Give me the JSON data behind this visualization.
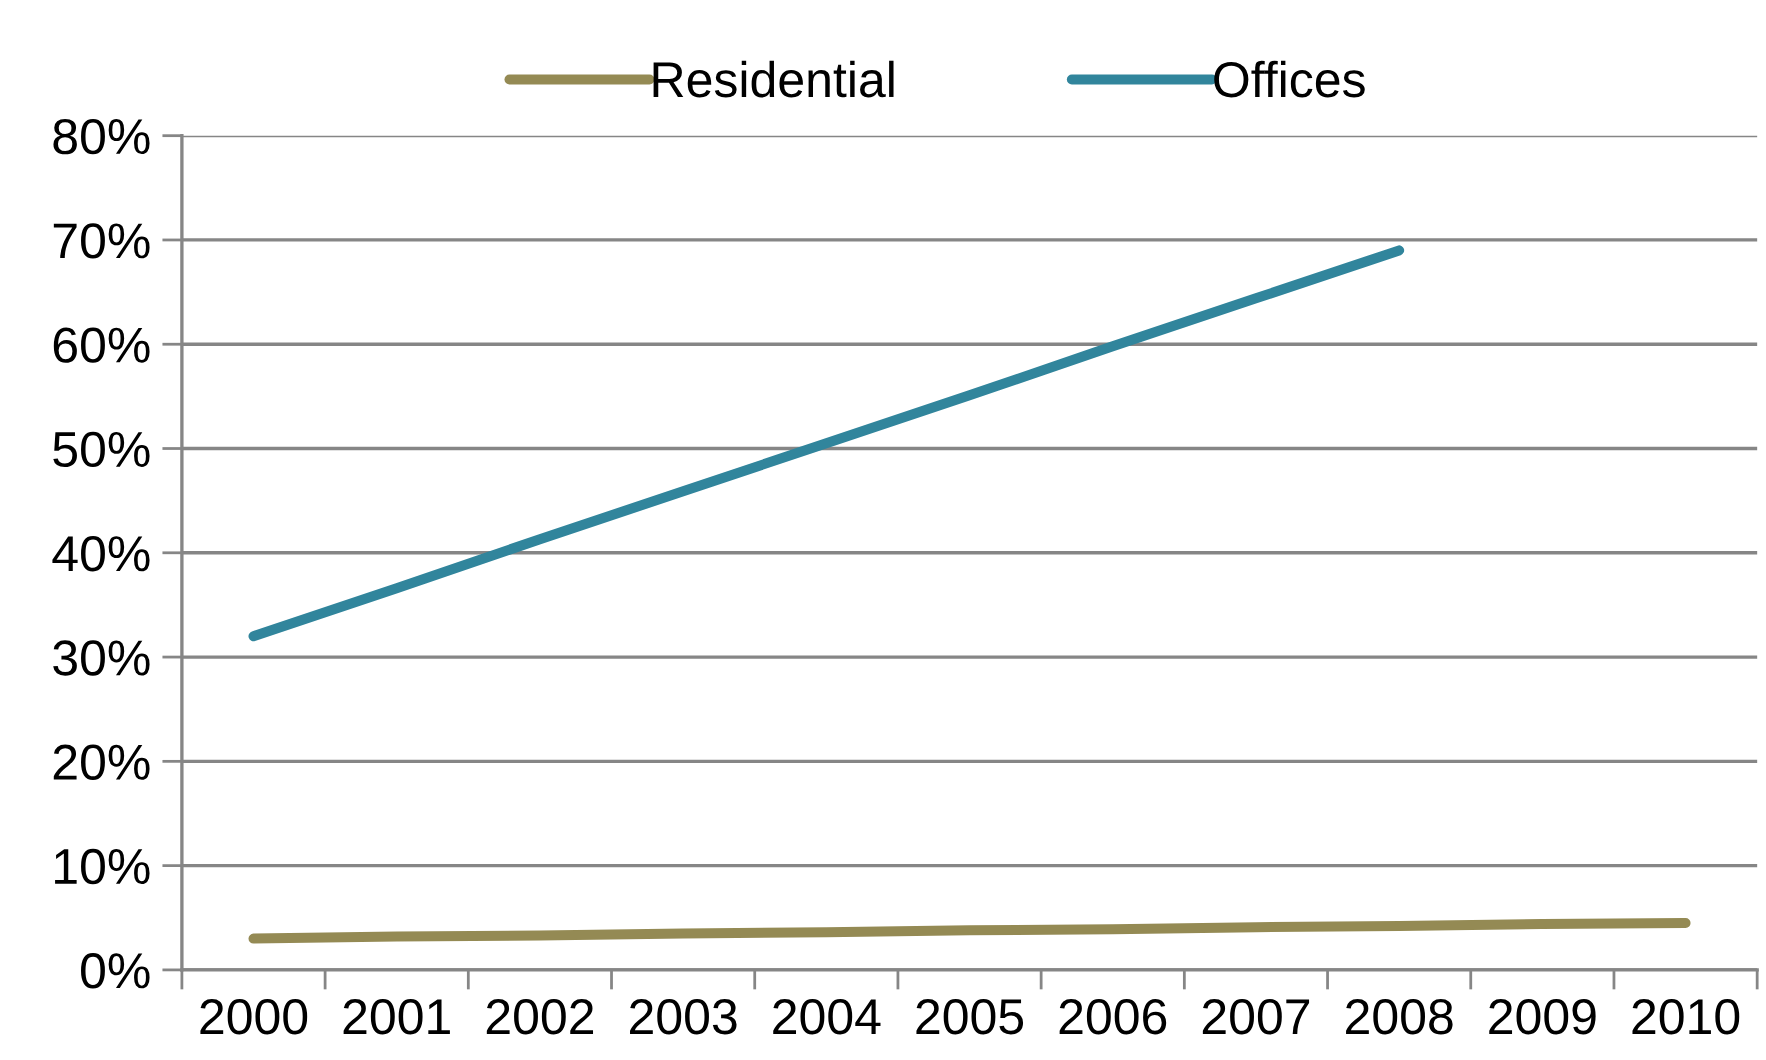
{
  "chart_data": {
    "type": "line",
    "categories": [
      "2000",
      "2001",
      "2002",
      "2003",
      "2004",
      "2005",
      "2006",
      "2007",
      "2008",
      "2009",
      "2010"
    ],
    "series": [
      {
        "name": "Residential",
        "color": "#948a54",
        "values": [
          3.0,
          3.2,
          3.3,
          3.5,
          3.6,
          3.8,
          3.9,
          4.1,
          4.2,
          4.4,
          4.5
        ]
      },
      {
        "name": "Offices",
        "color": "#31859c",
        "values": [
          32,
          36.6,
          41.3,
          45.9,
          50.5,
          55.1,
          59.8,
          64.4,
          69,
          null,
          null
        ]
      }
    ],
    "ylim": [
      0,
      80
    ],
    "yticks": [
      {
        "value": 0,
        "label": "0%"
      },
      {
        "value": 10,
        "label": "10%"
      },
      {
        "value": 20,
        "label": "20%"
      },
      {
        "value": 30,
        "label": "30%"
      },
      {
        "value": 40,
        "label": "40%"
      },
      {
        "value": 50,
        "label": "50%"
      },
      {
        "value": 60,
        "label": "60%"
      },
      {
        "value": 70,
        "label": "70%"
      },
      {
        "value": 80,
        "label": "80%"
      }
    ],
    "grid": "y",
    "legend": "top"
  }
}
